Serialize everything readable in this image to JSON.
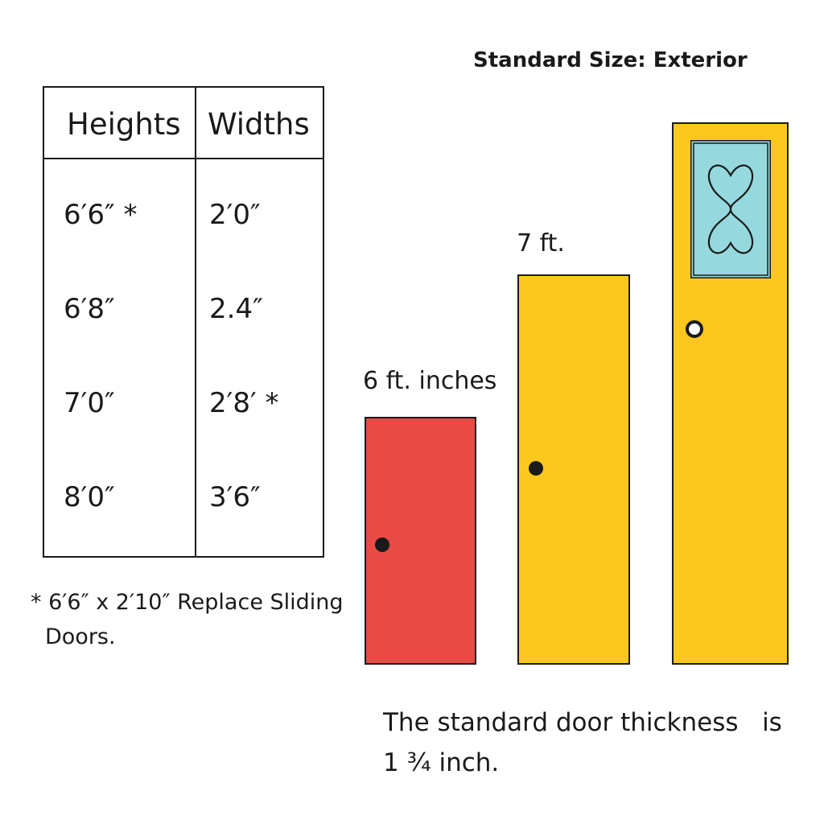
{
  "title": "Standard Size: Exterior",
  "table": {
    "headers": [
      "Heights",
      "Widths"
    ],
    "rows": [
      {
        "height": "6′6″ *",
        "width": "2′0″"
      },
      {
        "height": "6′8″",
        "width": "2.4″"
      },
      {
        "height": "7′0″",
        "width": "2′8′ *"
      },
      {
        "height": "8′0″",
        "width": "3′6″"
      }
    ]
  },
  "footnote": {
    "line1": "* 6′6″ x 2′10″ Replace Sliding",
    "line2": "Doors."
  },
  "doors": [
    {
      "label": "6 ft. inches",
      "color": "#e84a45",
      "type": "plain-door"
    },
    {
      "label": "7 ft.",
      "color": "#fcc820",
      "type": "plain-door"
    },
    {
      "label": "",
      "color": "#fcc820",
      "glass_color": "#95d9de",
      "type": "glass-panel-door"
    }
  ],
  "thickness_note": {
    "line1": "The standard door thickness   is",
    "line2": "1 ¾ inch."
  },
  "icons": [
    "door-knob-icon",
    "heart-scroll-ornament-icon"
  ]
}
